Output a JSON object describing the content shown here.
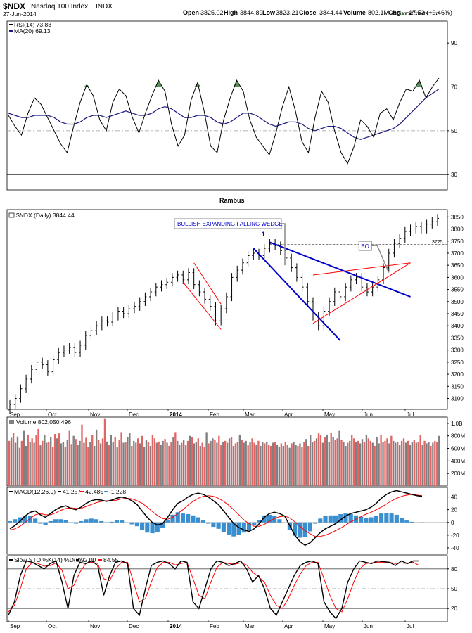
{
  "header": {
    "ticker": "$NDX",
    "name": "Nasdaq 100 Index",
    "exchange": "INDX",
    "date": "27-Jun-2014",
    "open_label": "Open",
    "open": "3825.02",
    "high_label": "High",
    "high": "3844.89",
    "low_label": "Low",
    "low": "3823.21",
    "close_label": "Close",
    "close": "3844.44",
    "volume_label": "Volume",
    "volume": "802.1M",
    "chg_label": "Chg",
    "chg": "+17.53 (+0.46%)",
    "chg_arrow": "▲",
    "copyright": "© StockCharts.com",
    "author": "Rambus"
  },
  "colors": {
    "price_bar": "#000000",
    "volume_up": "#e06666",
    "volume_down": "#808080",
    "blue_line": "#0000cc",
    "red_line": "#ff0000",
    "ma_line": "#1a1a80",
    "macd_hist": "#3a8fd0",
    "overbought_fill": "#3c7a3c"
  },
  "chart_data": [
    {
      "type": "line",
      "panel": "RSI",
      "legend": [
        "RSI(14) 73.83",
        "MA(20) 69.13"
      ],
      "ylim": [
        23,
        100
      ],
      "yticks": [
        30,
        50,
        70,
        90
      ],
      "levels": [
        30,
        50,
        70
      ],
      "series": [
        {
          "name": "RSI(14)",
          "values": [
            57,
            52,
            48,
            58,
            65,
            62,
            56,
            50,
            44,
            40,
            52,
            63,
            71,
            66,
            55,
            50,
            63,
            69,
            66,
            56,
            49,
            58,
            66,
            73,
            68,
            53,
            43,
            48,
            64,
            72,
            59,
            43,
            40,
            55,
            65,
            73,
            68,
            55,
            47,
            43,
            39,
            49,
            61,
            70,
            59,
            45,
            40,
            56,
            68,
            63,
            50,
            40,
            35,
            43,
            55,
            52,
            47,
            58,
            60,
            55,
            63,
            69,
            68,
            73,
            65,
            70,
            74
          ]
        },
        {
          "name": "MA(20)",
          "values": [
            58,
            57,
            56,
            56,
            57,
            57,
            57,
            56,
            54,
            53,
            53,
            54,
            56,
            57,
            57,
            56,
            57,
            58,
            59,
            58,
            57,
            57,
            58,
            60,
            61,
            60,
            58,
            56,
            56,
            57,
            57,
            56,
            54,
            53,
            54,
            56,
            58,
            58,
            57,
            55,
            53,
            52,
            53,
            54,
            54,
            53,
            51,
            50,
            51,
            52,
            52,
            51,
            49,
            47,
            46,
            47,
            48,
            49,
            50,
            51,
            53,
            56,
            59,
            62,
            65,
            67,
            69
          ]
        }
      ]
    },
    {
      "type": "bar",
      "panel": "price",
      "legend": [
        "$NDX (Daily) 3844.44"
      ],
      "ylim": [
        3055,
        3880
      ],
      "yticks": [
        3100,
        3150,
        3200,
        3250,
        3300,
        3350,
        3400,
        3450,
        3500,
        3550,
        3600,
        3650,
        3700,
        3750,
        3800,
        3850
      ],
      "x_months": [
        "Sep",
        "Oct",
        "Nov",
        "Dec",
        "2014",
        "Feb",
        "Mar",
        "Apr",
        "May",
        "Jun",
        "Jul"
      ],
      "x_start": "2013-09-03",
      "x_end": "2014-07-03",
      "closes": [
        3075,
        3100,
        3140,
        3180,
        3220,
        3250,
        3240,
        3210,
        3260,
        3290,
        3300,
        3310,
        3290,
        3320,
        3360,
        3380,
        3400,
        3420,
        3415,
        3440,
        3460,
        3450,
        3470,
        3480,
        3500,
        3520,
        3540,
        3560,
        3570,
        3580,
        3600,
        3610,
        3590,
        3620,
        3570,
        3540,
        3510,
        3480,
        3420,
        3470,
        3520,
        3600,
        3630,
        3660,
        3690,
        3700,
        3690,
        3720,
        3740,
        3730,
        3710,
        3680,
        3640,
        3600,
        3560,
        3500,
        3440,
        3400,
        3460,
        3500,
        3540,
        3520,
        3560,
        3590,
        3600,
        3560,
        3540,
        3560,
        3590,
        3640,
        3700,
        3740,
        3760,
        3790,
        3800,
        3810,
        3800,
        3820,
        3830,
        3844
      ],
      "annotations": [
        "BULLISH EXPANDING FALLING WEDGE",
        "1",
        "BO",
        "3725"
      ],
      "horizontal_level": 3735
    },
    {
      "type": "bar",
      "panel": "volume",
      "legend": [
        "Volume 802,050,496"
      ],
      "yticks": [
        "200M",
        "400M",
        "600M",
        "800M",
        "1.0B"
      ],
      "values_millions": [
        720,
        770,
        850,
        690,
        790,
        610,
        720,
        880,
        640,
        820,
        700,
        760,
        690,
        810,
        910,
        650,
        720,
        820,
        690,
        700,
        780,
        620,
        830,
        760,
        840,
        680,
        700,
        620,
        740,
        880,
        670,
        800,
        750,
        660,
        720,
        980,
        690,
        770,
        620,
        700,
        810,
        640,
        900,
        730,
        680,
        760,
        1070,
        710,
        650,
        820,
        700,
        780,
        620,
        740,
        860,
        690,
        700,
        780,
        850,
        640,
        720,
        690,
        760,
        680,
        800,
        620,
        740,
        700,
        640,
        820,
        760,
        690,
        710,
        660,
        720,
        750,
        690,
        640,
        700,
        780,
        860,
        720,
        660,
        690,
        740,
        650,
        720,
        800,
        780,
        680,
        700,
        760,
        640,
        690,
        620,
        860,
        680,
        720,
        760,
        740,
        690,
        800,
        650,
        700,
        720,
        690,
        760,
        780,
        640,
        680,
        700,
        820,
        740,
        690,
        720,
        650,
        700,
        760,
        690,
        660,
        720,
        640,
        700,
        680,
        700,
        660,
        640,
        690,
        700,
        660,
        620,
        680,
        640,
        700,
        660,
        610,
        680,
        700,
        660,
        640,
        680,
        620,
        700,
        750,
        640,
        810,
        700,
        720,
        760,
        840,
        810,
        690,
        780,
        820,
        700,
        850,
        780,
        730,
        760,
        880,
        740,
        700,
        640,
        690,
        720,
        810,
        760,
        700,
        720,
        680,
        750,
        700,
        820,
        760,
        720,
        690,
        640,
        780,
        680,
        820,
        700,
        720,
        760,
        680,
        800,
        720,
        690,
        700,
        650,
        720,
        760,
        690,
        720,
        660,
        700,
        740,
        690,
        700,
        810,
        660,
        720,
        680,
        700,
        640,
        690,
        720,
        700,
        800
      ],
      "up_flags": "1010011001010110100101101001011010010110100101101001011010010110100101101001011010010110100101101001011010010110100101101001011010010110100101101001011010010110100101101001011010010110100101101001011010010110100101101001"
    },
    {
      "type": "line",
      "panel": "MACD",
      "legend": [
        "MACD(12,26,9)",
        "41.257",
        "42.485",
        "-1.228"
      ],
      "ylim": [
        -50,
        55
      ],
      "yticks": [
        40,
        20,
        0,
        -20,
        -40
      ],
      "series": [
        {
          "name": "MACD",
          "values": [
            -10,
            -5,
            2,
            10,
            16,
            18,
            12,
            8,
            14,
            20,
            24,
            26,
            22,
            20,
            24,
            30,
            34,
            36,
            35,
            33,
            35,
            38,
            40,
            38,
            34,
            28,
            18,
            8,
            0,
            -4,
            -2,
            8,
            20,
            30,
            34,
            40,
            44,
            46,
            44,
            40,
            34,
            28,
            18,
            8,
            -2,
            -8,
            -12,
            -14,
            -10,
            -2,
            8,
            14,
            16,
            14,
            10,
            -5,
            -20,
            -30,
            -36,
            -32,
            -24,
            -16,
            -10,
            -6,
            -2,
            4,
            10,
            14,
            16,
            18,
            20,
            24,
            30,
            38,
            44,
            48,
            50,
            48,
            46,
            44,
            42,
            41
          ]
        },
        {
          "name": "Signal",
          "values": [
            -12,
            -10,
            -6,
            0,
            6,
            12,
            14,
            12,
            12,
            15,
            19,
            22,
            23,
            22,
            22,
            25,
            28,
            31,
            33,
            34,
            34,
            35,
            37,
            38,
            37,
            34,
            30,
            24,
            17,
            11,
            6,
            5,
            8,
            14,
            20,
            27,
            33,
            38,
            41,
            42,
            41,
            38,
            33,
            27,
            20,
            12,
            4,
            -2,
            -6,
            -6,
            -3,
            2,
            6,
            9,
            10,
            7,
            1,
            -6,
            -13,
            -18,
            -22,
            -22,
            -20,
            -17,
            -13,
            -9,
            -4,
            1,
            5,
            9,
            13,
            16,
            20,
            24,
            29,
            34,
            38,
            41,
            43,
            44,
            43,
            42
          ]
        },
        {
          "name": "Histogram",
          "values": [
            2,
            5,
            8,
            10,
            10,
            6,
            -2,
            -4,
            2,
            5,
            5,
            4,
            -1,
            -2,
            2,
            5,
            6,
            5,
            2,
            -1,
            1,
            3,
            3,
            0,
            -3,
            -6,
            -12,
            -16,
            -17,
            -15,
            -8,
            3,
            12,
            16,
            14,
            13,
            11,
            8,
            3,
            -2,
            -7,
            -10,
            -15,
            -19,
            -22,
            -20,
            -16,
            -12,
            -4,
            4,
            11,
            12,
            10,
            5,
            0,
            -12,
            -21,
            -24,
            -23,
            -14,
            -2,
            6,
            10,
            11,
            11,
            13,
            14,
            13,
            11,
            9,
            7,
            8,
            10,
            14,
            15,
            14,
            12,
            7,
            3,
            1,
            0,
            -1
          ]
        }
      ]
    },
    {
      "type": "line",
      "panel": "STO",
      "legend": [
        "Slow STO %K(14) %D(3)",
        "92.00",
        "84.55"
      ],
      "ylim": [
        0,
        100
      ],
      "yticks": [
        20,
        50,
        80
      ],
      "series": [
        {
          "name": "%K(14)",
          "values": [
            10,
            30,
            70,
            92,
            90,
            85,
            80,
            88,
            92,
            60,
            20,
            70,
            90,
            88,
            92,
            85,
            40,
            70,
            90,
            92,
            88,
            20,
            10,
            50,
            85,
            90,
            92,
            88,
            80,
            92,
            90,
            30,
            20,
            50,
            80,
            92,
            90,
            85,
            88,
            92,
            80,
            60,
            70,
            50,
            20,
            10,
            30,
            50,
            70,
            85,
            90,
            92,
            88,
            30,
            15,
            5,
            20,
            60,
            80,
            92,
            90,
            88,
            92,
            91,
            90,
            85,
            92,
            88,
            92,
            92
          ]
        },
        {
          "name": "%D(3)",
          "values": [
            15,
            25,
            50,
            80,
            90,
            88,
            84,
            85,
            89,
            78,
            50,
            55,
            75,
            88,
            90,
            88,
            65,
            62,
            80,
            90,
            90,
            60,
            30,
            35,
            60,
            82,
            90,
            90,
            86,
            88,
            90,
            65,
            40,
            35,
            60,
            82,
            90,
            88,
            87,
            89,
            86,
            75,
            68,
            60,
            40,
            25,
            20,
            35,
            55,
            72,
            85,
            90,
            90,
            65,
            40,
            20,
            15,
            35,
            60,
            80,
            88,
            89,
            90,
            90,
            90,
            88,
            89,
            88,
            90,
            85
          ]
        }
      ]
    }
  ]
}
